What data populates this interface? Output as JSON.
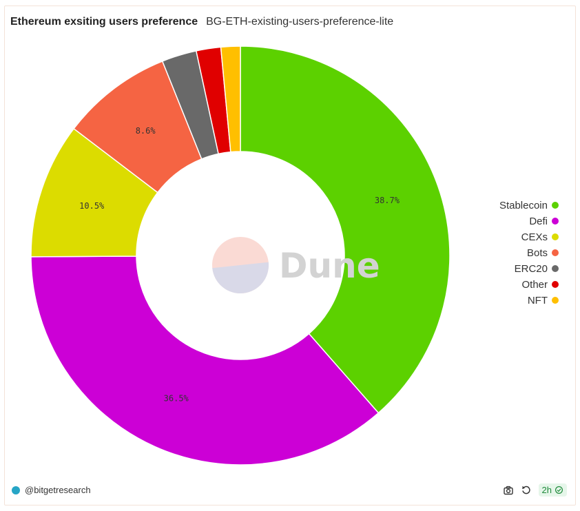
{
  "header": {
    "title": "Ethereum exsiting users preference",
    "query_name": "BG-ETH-existing-users-preference-lite"
  },
  "watermark": "Dune",
  "footer": {
    "creator": "@bitgetresearch",
    "age": "2h",
    "icons": [
      "camera-icon",
      "refresh-icon",
      "check-circle-icon"
    ]
  },
  "chart_data": {
    "type": "pie",
    "style": "donut",
    "categories": [
      "Stablecoin",
      "Defi",
      "CEXs",
      "Bots",
      "ERC20",
      "Other",
      "NFT"
    ],
    "values": [
      38.7,
      36.5,
      10.5,
      8.6,
      2.7,
      1.9,
      1.5
    ],
    "labels": [
      "38.7%",
      "36.5%",
      "10.5%",
      "8.6%",
      "",
      "",
      ""
    ],
    "colors": [
      "#5cd100",
      "#cc00d6",
      "#dcdc00",
      "#f56443",
      "#696969",
      "#e00000",
      "#ffbf00"
    ],
    "legend": "right"
  }
}
